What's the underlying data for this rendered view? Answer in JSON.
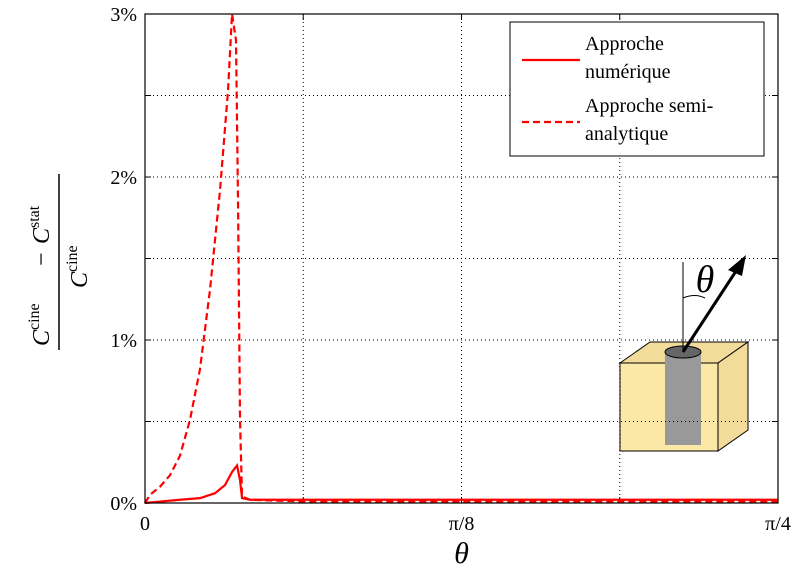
{
  "chart_data": {
    "type": "line",
    "xlabel": "θ",
    "ylabel": {
      "numerator": [
        {
          "base": "C",
          "sup": "cine"
        },
        {
          "base": "C",
          "sup": "stat"
        }
      ],
      "operator": "−",
      "denominator": {
        "base": "C",
        "sup": "cine"
      }
    },
    "xlim": [
      0,
      0.7854
    ],
    "ylim": [
      0,
      3
    ],
    "xticks": [
      0,
      {
        "value": 0.3927,
        "label": "π/8"
      },
      {
        "value": 0.7854,
        "label": "π/4"
      }
    ],
    "xminor_ticks": [
      0.19635,
      0.58905
    ],
    "yticks": [
      {
        "value": 0,
        "label": "0%"
      },
      {
        "value": 1,
        "label": "1%"
      },
      {
        "value": 2,
        "label": "2%"
      },
      {
        "value": 3,
        "label": "3%"
      }
    ],
    "yminor_ticks": [
      0.5,
      1.5,
      2.5
    ],
    "grid": true,
    "legend": "upper right",
    "inset_label": "θ",
    "series": [
      {
        "name": "Approche numérique",
        "color": "#ff0000",
        "dash": "solid",
        "x": [
          0,
          0.0434,
          0.0682,
          0.0869,
          0.0993,
          0.108,
          0.1142,
          0.1179,
          0.1204,
          0.1303,
          0.7854
        ],
        "values": [
          0,
          0.02,
          0.03,
          0.06,
          0.11,
          0.19,
          0.23,
          0.14,
          0.03,
          0.02,
          0.02
        ]
      },
      {
        "name": "Approche semi-analytique",
        "color": "#ff0000",
        "dash": "dashed",
        "x": [
          0,
          0.0062,
          0.0186,
          0.031,
          0.0434,
          0.0558,
          0.0682,
          0.0807,
          0.0931,
          0.103,
          0.108,
          0.1129,
          0.1154,
          0.1179,
          0.1204,
          0.1303,
          0.1923,
          0.7854
        ],
        "values": [
          0,
          0.05,
          0.1,
          0.17,
          0.29,
          0.51,
          0.82,
          1.31,
          1.92,
          2.53,
          3.0,
          2.84,
          1.86,
          0.51,
          0.04,
          0.02,
          0.01,
          0.01
        ]
      }
    ]
  }
}
